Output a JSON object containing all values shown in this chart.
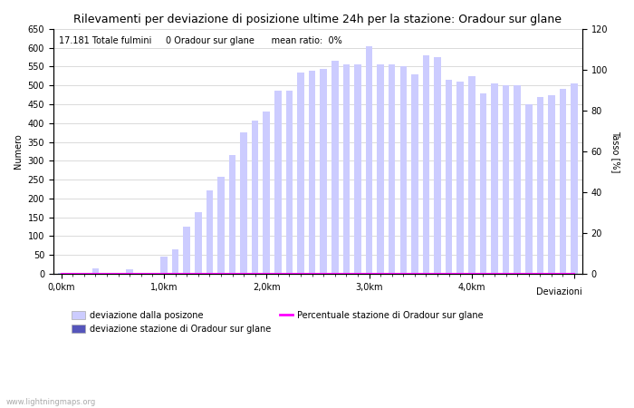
{
  "title": "Rilevamenti per deviazione di posizione ultime 24h per la stazione: Oradour sur glane",
  "annotation": "17.181 Totale fulmini     0 Oradour sur glane      mean ratio:  0%",
  "ylabel_left": "Numero",
  "ylabel_right": "Tasso [%]",
  "xlabel_right": "Deviazioni",
  "background_color": "#ffffff",
  "bar_color_light": "#ccccff",
  "bar_color_dark": "#5555bb",
  "line_color": "#ff00ff",
  "ylim_left": [
    0,
    650
  ],
  "ylim_right": [
    0,
    120
  ],
  "ytick_left": [
    0,
    50,
    100,
    150,
    200,
    250,
    300,
    350,
    400,
    450,
    500,
    550,
    600,
    650
  ],
  "ytick_right": [
    0,
    20,
    40,
    60,
    80,
    100,
    120
  ],
  "bar_values": [
    2,
    0,
    0,
    14,
    2,
    0,
    13,
    1,
    2,
    46,
    65,
    125,
    164,
    222,
    258,
    315,
    376,
    407,
    430,
    485,
    485,
    535,
    540,
    545,
    565,
    555,
    555,
    605,
    555,
    555,
    550,
    530,
    580,
    575,
    515,
    510,
    525,
    480,
    505,
    500,
    500,
    450,
    470,
    475,
    490,
    505
  ],
  "station_bar_values": [
    0,
    0,
    0,
    0,
    0,
    0,
    0,
    0,
    0,
    0,
    0,
    0,
    0,
    0,
    0,
    0,
    0,
    0,
    0,
    0,
    0,
    0,
    0,
    0,
    0,
    0,
    0,
    0,
    0,
    0,
    0,
    0,
    0,
    0,
    0,
    0,
    0,
    0,
    0,
    0,
    0,
    0,
    0,
    0,
    0,
    0
  ],
  "ratio_values": [
    0,
    0,
    0,
    0,
    0,
    0,
    0,
    0,
    0,
    0,
    0,
    0,
    0,
    0,
    0,
    0,
    0,
    0,
    0,
    0,
    0,
    0,
    0,
    0,
    0,
    0,
    0,
    0,
    0,
    0,
    0,
    0,
    0,
    0,
    0,
    0,
    0,
    0,
    0,
    0,
    0,
    0,
    0,
    0,
    0,
    0
  ],
  "legend1_label": "deviazione dalla posizone",
  "legend2_label": "deviazione stazione di Oradour sur glane",
  "legend3_label": "Percentuale stazione di Oradour sur glane",
  "watermark": "www.lightningmaps.org"
}
